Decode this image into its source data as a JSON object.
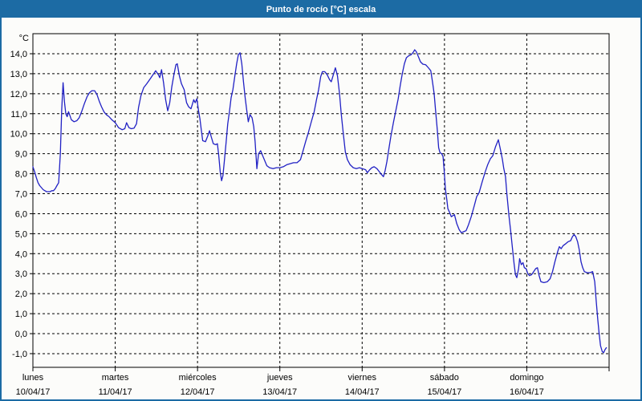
{
  "window": {
    "title": "Punto de rocío [°C] escala"
  },
  "colors": {
    "titlebar_bg": "#1c6ba4",
    "titlebar_text": "#ffffff",
    "window_border": "#1c6ba4",
    "background": "#fcfcfa",
    "line": "#2121c4",
    "grid": "#000000",
    "frame": "#000000",
    "tick_text": "#000000"
  },
  "chart_data": {
    "type": "line",
    "title": "Punto de rocío [°C] escala",
    "y_axis_label": "°C",
    "ylim": [
      -1,
      14
    ],
    "y_tick_step": 1,
    "y_tick_labels": [
      "14,0",
      "13,0",
      "12,0",
      "11,0",
      "10,0",
      "9,0",
      "8,0",
      "7,0",
      "6,0",
      "5,0",
      "4,0",
      "3,0",
      "2,0",
      "1,0",
      "0,0",
      "-1,0"
    ],
    "grid": "dashed",
    "x_total_hours": 168,
    "x_days": [
      {
        "name": "lunes",
        "date": "10/04/17"
      },
      {
        "name": "martes",
        "date": "11/04/17"
      },
      {
        "name": "miércoles",
        "date": "12/04/17"
      },
      {
        "name": "jueves",
        "date": "13/04/17"
      },
      {
        "name": "viernes",
        "date": "14/04/17"
      },
      {
        "name": "sábado",
        "date": "15/04/17"
      },
      {
        "name": "domingo",
        "date": "16/04/17"
      }
    ],
    "series": [
      {
        "name": "Punto de rocío [°C]",
        "points": [
          [
            0,
            8.35
          ],
          [
            0.5,
            8.1
          ],
          [
            1,
            7.8
          ],
          [
            1.5,
            7.55
          ],
          [
            2,
            7.4
          ],
          [
            2.5,
            7.3
          ],
          [
            3,
            7.2
          ],
          [
            3.5,
            7.15
          ],
          [
            4,
            7.1
          ],
          [
            5,
            7.1
          ],
          [
            5.5,
            7.15
          ],
          [
            6,
            7.15
          ],
          [
            6.5,
            7.25
          ],
          [
            7,
            7.4
          ],
          [
            7.5,
            7.55
          ],
          [
            8,
            9.0
          ],
          [
            8.4,
            11.2
          ],
          [
            8.8,
            12.55
          ],
          [
            9.2,
            11.6
          ],
          [
            9.6,
            11.0
          ],
          [
            10,
            10.85
          ],
          [
            10.4,
            11.1
          ],
          [
            10.8,
            10.9
          ],
          [
            11.2,
            10.7
          ],
          [
            12,
            10.6
          ],
          [
            12.8,
            10.65
          ],
          [
            13.5,
            10.8
          ],
          [
            14.2,
            11.1
          ],
          [
            15,
            11.5
          ],
          [
            15.8,
            11.85
          ],
          [
            16.5,
            12.05
          ],
          [
            17.2,
            12.15
          ],
          [
            18,
            12.15
          ],
          [
            18.7,
            11.95
          ],
          [
            19.4,
            11.6
          ],
          [
            20,
            11.35
          ],
          [
            20.7,
            11.1
          ],
          [
            21.4,
            10.95
          ],
          [
            22.2,
            10.85
          ],
          [
            23,
            10.7
          ],
          [
            24,
            10.55
          ],
          [
            25,
            10.3
          ],
          [
            26,
            10.2
          ],
          [
            26.8,
            10.25
          ],
          [
            27.3,
            10.55
          ],
          [
            28,
            10.3
          ],
          [
            28.7,
            10.25
          ],
          [
            29.5,
            10.28
          ],
          [
            30.2,
            10.5
          ],
          [
            30.8,
            11.3
          ],
          [
            31.5,
            11.9
          ],
          [
            32.3,
            12.3
          ],
          [
            33.2,
            12.5
          ],
          [
            34.2,
            12.75
          ],
          [
            35,
            12.95
          ],
          [
            35.8,
            13.15
          ],
          [
            36.6,
            12.95
          ],
          [
            37,
            12.8
          ],
          [
            37.5,
            13.2
          ],
          [
            38.1,
            12.55
          ],
          [
            38.7,
            11.7
          ],
          [
            39.3,
            11.15
          ],
          [
            39.9,
            11.55
          ],
          [
            40.5,
            12.35
          ],
          [
            41.1,
            12.95
          ],
          [
            41.7,
            13.45
          ],
          [
            42.1,
            13.5
          ],
          [
            42.7,
            12.9
          ],
          [
            43.3,
            12.5
          ],
          [
            44.1,
            12.2
          ],
          [
            44.8,
            11.55
          ],
          [
            45.4,
            11.35
          ],
          [
            46.1,
            11.25
          ],
          [
            46.9,
            11.7
          ],
          [
            47.3,
            11.55
          ],
          [
            47.8,
            11.75
          ],
          [
            48.3,
            11.15
          ],
          [
            48.7,
            10.75
          ],
          [
            49.1,
            10.2
          ],
          [
            49.5,
            9.65
          ],
          [
            50.3,
            9.6
          ],
          [
            51,
            9.9
          ],
          [
            51.5,
            10.15
          ],
          [
            52,
            9.85
          ],
          [
            52.6,
            9.5
          ],
          [
            53.3,
            9.45
          ],
          [
            53.8,
            9.5
          ],
          [
            54.2,
            8.9
          ],
          [
            54.6,
            8.1
          ],
          [
            55,
            7.65
          ],
          [
            55.4,
            7.9
          ],
          [
            55.8,
            8.6
          ],
          [
            56.3,
            9.5
          ],
          [
            56.8,
            10.5
          ],
          [
            57.3,
            11.1
          ],
          [
            57.8,
            11.8
          ],
          [
            58.3,
            12.2
          ],
          [
            58.9,
            12.9
          ],
          [
            59.4,
            13.5
          ],
          [
            59.9,
            13.95
          ],
          [
            60.4,
            14.05
          ],
          [
            60.9,
            13.5
          ],
          [
            61.4,
            12.6
          ],
          [
            61.9,
            11.8
          ],
          [
            62.4,
            11.1
          ],
          [
            62.8,
            10.6
          ],
          [
            63.3,
            10.95
          ],
          [
            63.9,
            10.8
          ],
          [
            64.4,
            10.35
          ],
          [
            64.8,
            9.6
          ],
          [
            65.3,
            8.25
          ],
          [
            65.8,
            9.0
          ],
          [
            66.4,
            9.15
          ],
          [
            67,
            8.9
          ],
          [
            67.6,
            8.65
          ],
          [
            68.2,
            8.4
          ],
          [
            69,
            8.3
          ],
          [
            70,
            8.25
          ],
          [
            71,
            8.3
          ],
          [
            72,
            8.3
          ],
          [
            73,
            8.35
          ],
          [
            74,
            8.45
          ],
          [
            75,
            8.5
          ],
          [
            76,
            8.55
          ],
          [
            77,
            8.55
          ],
          [
            78,
            8.7
          ],
          [
            78.7,
            9.1
          ],
          [
            79.5,
            9.6
          ],
          [
            80.3,
            10.05
          ],
          [
            81.1,
            10.55
          ],
          [
            82,
            11.1
          ],
          [
            82.7,
            11.7
          ],
          [
            83.3,
            12.2
          ],
          [
            83.9,
            12.85
          ],
          [
            84.4,
            13.1
          ],
          [
            85.1,
            13.1
          ],
          [
            85.8,
            12.95
          ],
          [
            86.5,
            12.7
          ],
          [
            87,
            12.6
          ],
          [
            87.6,
            12.95
          ],
          [
            88.2,
            13.3
          ],
          [
            88.8,
            12.9
          ],
          [
            89.4,
            12.0
          ],
          [
            89.9,
            11.0
          ],
          [
            90.5,
            10.0
          ],
          [
            91.1,
            9.1
          ],
          [
            91.7,
            8.7
          ],
          [
            92.5,
            8.45
          ],
          [
            93.4,
            8.3
          ],
          [
            94.3,
            8.25
          ],
          [
            95.2,
            8.3
          ],
          [
            96,
            8.25
          ],
          [
            97,
            8.2
          ],
          [
            97.5,
            8.05
          ],
          [
            98.2,
            8.2
          ],
          [
            98.8,
            8.3
          ],
          [
            99.5,
            8.35
          ],
          [
            100.3,
            8.25
          ],
          [
            101,
            8.1
          ],
          [
            101.7,
            7.95
          ],
          [
            102.2,
            7.85
          ],
          [
            102.7,
            8.15
          ],
          [
            103.2,
            8.6
          ],
          [
            103.8,
            9.25
          ],
          [
            104.4,
            9.9
          ],
          [
            105.1,
            10.55
          ],
          [
            105.8,
            11.15
          ],
          [
            106.5,
            11.75
          ],
          [
            107.1,
            12.4
          ],
          [
            107.7,
            13.0
          ],
          [
            108.3,
            13.5
          ],
          [
            108.9,
            13.8
          ],
          [
            109.6,
            13.9
          ],
          [
            110.3,
            13.95
          ],
          [
            111,
            14.1
          ],
          [
            111.3,
            14.2
          ],
          [
            111.8,
            14.1
          ],
          [
            112.4,
            13.85
          ],
          [
            113,
            13.6
          ],
          [
            113.7,
            13.48
          ],
          [
            114.5,
            13.45
          ],
          [
            115.3,
            13.3
          ],
          [
            116,
            13.15
          ],
          [
            116.5,
            12.6
          ],
          [
            117,
            12.0
          ],
          [
            117.4,
            11.2
          ],
          [
            117.9,
            10.2
          ],
          [
            118.3,
            9.3
          ],
          [
            118.7,
            9.05
          ],
          [
            119.2,
            9.0
          ],
          [
            119.6,
            8.85
          ],
          [
            119.9,
            8.2
          ],
          [
            120.3,
            7.2
          ],
          [
            120.7,
            6.7
          ],
          [
            121,
            6.25
          ],
          [
            121.4,
            6.1
          ],
          [
            122,
            5.85
          ],
          [
            122.9,
            5.95
          ],
          [
            123.6,
            5.5
          ],
          [
            124.3,
            5.2
          ],
          [
            124.9,
            5.05
          ],
          [
            125.6,
            5.1
          ],
          [
            126.3,
            5.15
          ],
          [
            127,
            5.45
          ],
          [
            127.8,
            5.85
          ],
          [
            128.7,
            6.4
          ],
          [
            129.4,
            6.85
          ],
          [
            130.1,
            7.05
          ],
          [
            131,
            7.6
          ],
          [
            131.9,
            8.1
          ],
          [
            132.6,
            8.45
          ],
          [
            133.4,
            8.75
          ],
          [
            134.1,
            8.9
          ],
          [
            134.9,
            9.35
          ],
          [
            135.7,
            9.7
          ],
          [
            136.4,
            9.15
          ],
          [
            136.9,
            8.7
          ],
          [
            137.3,
            8.25
          ],
          [
            137.8,
            7.85
          ],
          [
            138.2,
            7.0
          ],
          [
            138.8,
            5.9
          ],
          [
            139.3,
            5.15
          ],
          [
            139.8,
            4.3
          ],
          [
            140.3,
            3.5
          ],
          [
            140.7,
            2.95
          ],
          [
            141.1,
            2.8
          ],
          [
            141.6,
            3.25
          ],
          [
            141.9,
            3.75
          ],
          [
            142.4,
            3.45
          ],
          [
            142.9,
            3.55
          ],
          [
            143.3,
            3.3
          ],
          [
            143.8,
            3.25
          ],
          [
            144.3,
            3.0
          ],
          [
            144.8,
            2.9
          ],
          [
            145.4,
            2.95
          ],
          [
            146,
            3.1
          ],
          [
            146.6,
            3.25
          ],
          [
            147.1,
            3.3
          ],
          [
            147.6,
            2.9
          ],
          [
            148.1,
            2.6
          ],
          [
            149,
            2.55
          ],
          [
            150,
            2.6
          ],
          [
            150.8,
            2.75
          ],
          [
            151.5,
            3.1
          ],
          [
            152.2,
            3.6
          ],
          [
            153,
            4.1
          ],
          [
            153.5,
            4.35
          ],
          [
            154,
            4.25
          ],
          [
            154.6,
            4.4
          ],
          [
            155.4,
            4.5
          ],
          [
            156.1,
            4.6
          ],
          [
            156.8,
            4.65
          ],
          [
            157.3,
            4.85
          ],
          [
            157.8,
            4.95
          ],
          [
            158.3,
            4.85
          ],
          [
            158.8,
            4.6
          ],
          [
            159.3,
            4.2
          ],
          [
            159.8,
            3.6
          ],
          [
            160.3,
            3.3
          ],
          [
            160.8,
            3.1
          ],
          [
            161.6,
            3.05
          ],
          [
            162.4,
            3.05
          ],
          [
            163.2,
            3.1
          ],
          [
            163.8,
            2.6
          ],
          [
            164.2,
            1.7
          ],
          [
            164.7,
            0.7
          ],
          [
            165.1,
            0.0
          ],
          [
            165.5,
            -0.6
          ],
          [
            166,
            -0.9
          ],
          [
            166.4,
            -0.95
          ],
          [
            166.8,
            -0.8
          ],
          [
            167.2,
            -0.7
          ]
        ]
      }
    ]
  }
}
